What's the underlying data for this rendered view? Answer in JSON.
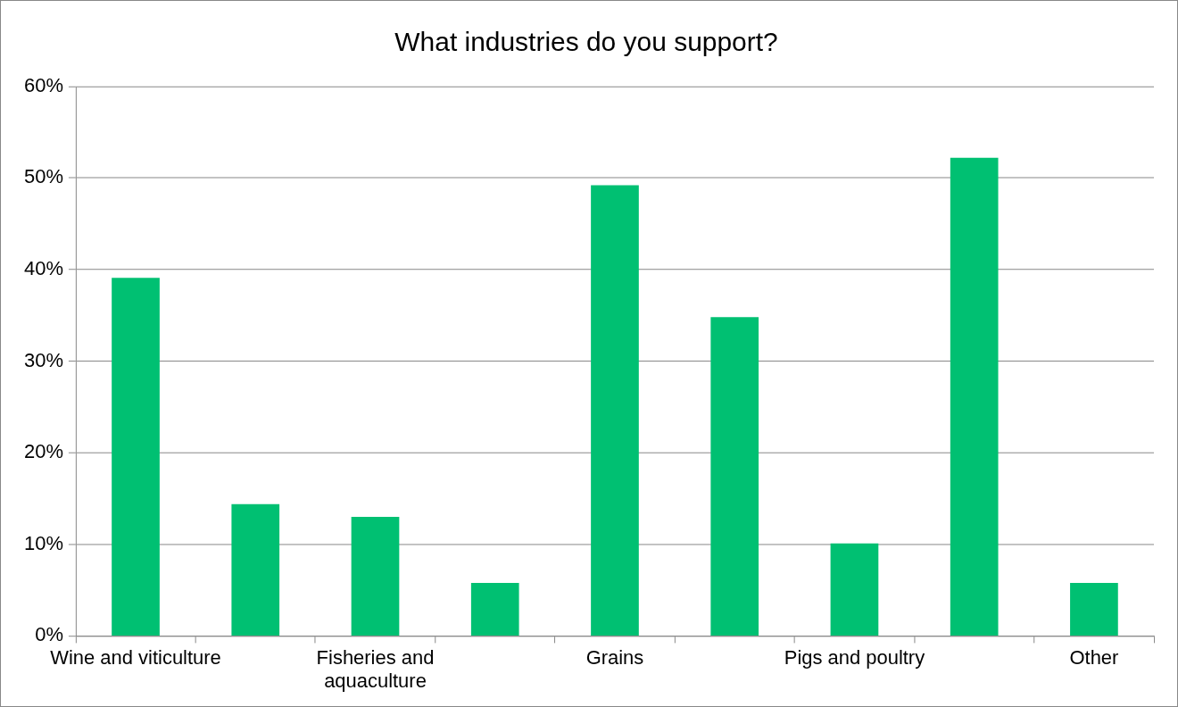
{
  "chart_data": {
    "type": "bar",
    "title": "What industries do you support?",
    "categories": [
      "Wine and viticulture",
      null,
      "Fisheries and aquaculture",
      null,
      "Grains",
      null,
      "Pigs and poultry",
      null,
      "Other"
    ],
    "values": [
      39.1,
      14.4,
      13.0,
      5.8,
      49.2,
      34.8,
      10.1,
      52.2,
      5.8
    ],
    "color": "#00c072",
    "ylim": [
      0,
      60
    ],
    "yticks": [
      {
        "value": 0,
        "label": "0%"
      },
      {
        "value": 10,
        "label": "10%"
      },
      {
        "value": 20,
        "label": "20%"
      },
      {
        "value": 30,
        "label": "30%"
      },
      {
        "value": 40,
        "label": "40%"
      },
      {
        "value": 50,
        "label": "50%"
      },
      {
        "value": 60,
        "label": "60%"
      }
    ],
    "grid": "y",
    "legend": false
  }
}
